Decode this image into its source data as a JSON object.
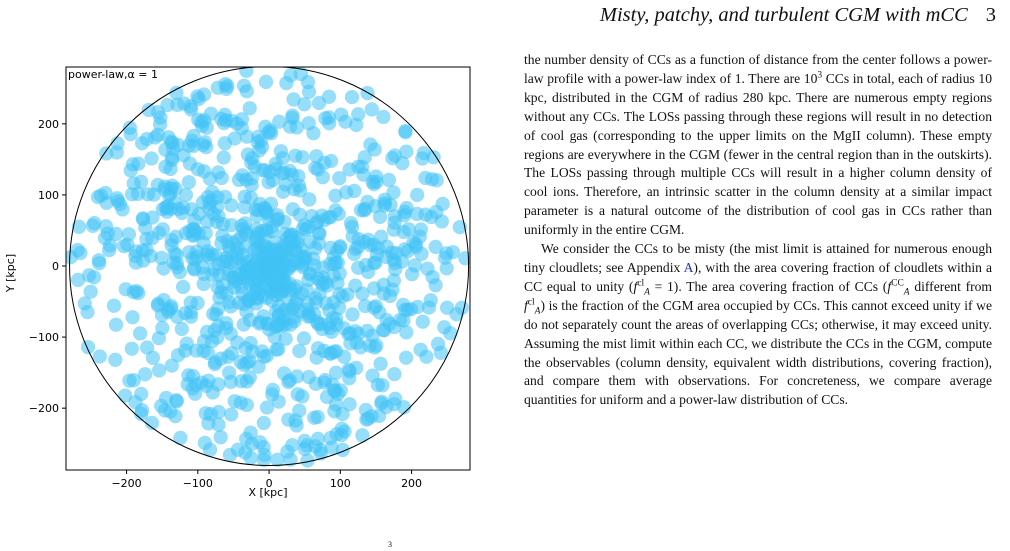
{
  "header": {
    "running_title": "Misty, patchy, and turbulent CGM with mCC",
    "page_number": "3"
  },
  "figure": {
    "caption_fragment": "3"
  },
  "chart_data": {
    "type": "scatter",
    "annotation": "power-law,α = 1",
    "xlabel": "X [kpc]",
    "ylabel": "Y [kpc]",
    "xlim": [
      -285,
      282
    ],
    "ylim": [
      -287,
      280
    ],
    "x_ticks": [
      "−200",
      "−100",
      "0",
      "100",
      "200"
    ],
    "x_tick_values": [
      -200,
      -100,
      0,
      100,
      200
    ],
    "y_ticks": [
      "200",
      "100",
      "0",
      "−100",
      "−200"
    ],
    "y_tick_values": [
      200,
      100,
      0,
      -100,
      -200
    ],
    "boundary_radius_kpc": 280,
    "cloud_radius_kpc": 10,
    "n_clouds": 1000,
    "density_profile": "power-law, index 1",
    "marker_color": "#41c3f5",
    "marker_opacity": 0.55,
    "grid": false
  },
  "paragraphs": {
    "p1": {
      "a": "the number density of CCs as a function of distance from the center follows a power-law profile with a power-law index of 1. There are 10",
      "a_sup": "3",
      "b": " CCs in total, each of radius 10 kpc, distributed in the CGM of radius 280 kpc. There are numerous empty regions without any CCs. The LOSs passing through these regions will result in no detection of cool gas (corresponding to the upper limits on the MgII column). These empty regions are everywhere in the CGM (fewer in the central region than in the outskirts). The LOSs passing through multiple CCs will result in a higher column density of cool ions. Therefore, an intrinsic scatter in the column density at a similar impact parameter is a natural outcome of the distribution of cool gas in CCs rather than uniformly in the entire CGM."
    },
    "p2": {
      "a": "We consider the CCs to be misty (the mist limit is attained for numerous enough tiny cloudlets; see Appendix ",
      "link": "A",
      "b": "), with the area covering fraction of cloudlets within a CC equal to unity (",
      "f1": "f",
      "f1_sup": "cl",
      "f1_sub": "A",
      "c": " = 1). The area covering fraction of CCs (",
      "f2": "f",
      "f2_sup": "CC",
      "f2_sub": "A",
      "d": " different from ",
      "f3": "f",
      "f3_sup": "cl",
      "f3_sub": "A",
      "e": ") is the fraction of the CGM area occupied by CCs. This cannot exceed unity if we do not separately count the areas of overlapping CCs; otherwise, it may exceed unity. Assuming the mist limit within each CC, we distribute the CCs in the CGM, compute the observables (column density, equivalent width distributions, covering fraction), and compare them with observations. For concreteness, we compare average quantities for uniform and a power-law distribution of CCs."
    }
  }
}
